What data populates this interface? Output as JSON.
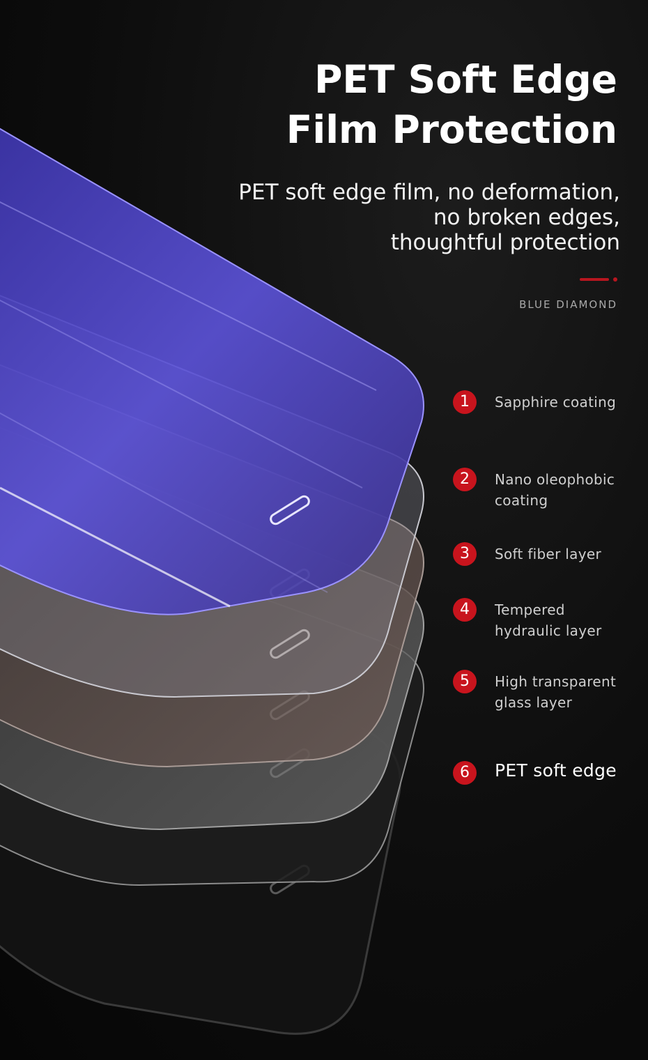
{
  "heading": {
    "line1": "PET Soft Edge",
    "line2": "Film Protection"
  },
  "subheading": {
    "line1": "PET soft edge film, no deformation,",
    "line2": "no broken edges,",
    "line3": "thoughtful protection"
  },
  "brand": "BLUE DIAMOND",
  "features": [
    {
      "num": "1",
      "line1": "Sapphire coating",
      "line2": ""
    },
    {
      "num": "2",
      "line1": "Nano oleophobic",
      "line2": "coating"
    },
    {
      "num": "3",
      "line1": "Soft fiber layer",
      "line2": ""
    },
    {
      "num": "4",
      "line1": "Tempered",
      "line2": "hydraulic layer"
    },
    {
      "num": "5",
      "line1": "High transparent",
      "line2": "glass layer"
    },
    {
      "num": "6",
      "line1": "PET soft edge",
      "line2": ""
    }
  ],
  "colors": {
    "accent": "#c8141d",
    "background": "#0c0c0c",
    "film_purple": "#5a4fd0"
  }
}
